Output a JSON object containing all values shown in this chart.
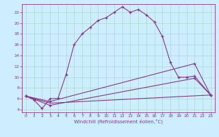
{
  "xlabel": "Windchill (Refroidissement éolien,°C)",
  "background_color": "#cceeff",
  "grid_color": "#b0d8cc",
  "line_color": "#883388",
  "xlim": [
    -0.5,
    23.5
  ],
  "ylim": [
    3.5,
    23.5
  ],
  "xticks": [
    0,
    1,
    2,
    3,
    4,
    5,
    6,
    7,
    8,
    9,
    10,
    11,
    12,
    13,
    14,
    15,
    16,
    17,
    18,
    19,
    20,
    21,
    22,
    23
  ],
  "yticks": [
    4,
    6,
    8,
    10,
    12,
    14,
    16,
    18,
    20,
    22
  ],
  "series1_x": [
    0,
    1,
    2,
    3,
    4,
    5,
    6,
    7,
    8,
    9,
    10,
    11,
    12,
    13,
    14,
    15,
    16,
    17,
    18,
    19,
    20,
    21,
    23
  ],
  "series1_y": [
    6.5,
    5.8,
    4.2,
    6.0,
    6.1,
    10.5,
    16.0,
    18.0,
    19.2,
    20.5,
    21.0,
    22.0,
    23.0,
    22.0,
    22.5,
    21.5,
    20.2,
    17.5,
    12.7,
    10.0,
    10.0,
    10.2,
    6.7
  ],
  "series2_x": [
    0,
    3,
    23
  ],
  "series2_y": [
    6.5,
    5.2,
    6.7
  ],
  "series3_x": [
    0,
    3,
    21,
    23
  ],
  "series3_y": [
    6.5,
    4.8,
    9.8,
    6.7
  ],
  "series4_x": [
    0,
    3,
    21,
    23
  ],
  "series4_y": [
    6.5,
    5.5,
    12.5,
    6.7
  ]
}
